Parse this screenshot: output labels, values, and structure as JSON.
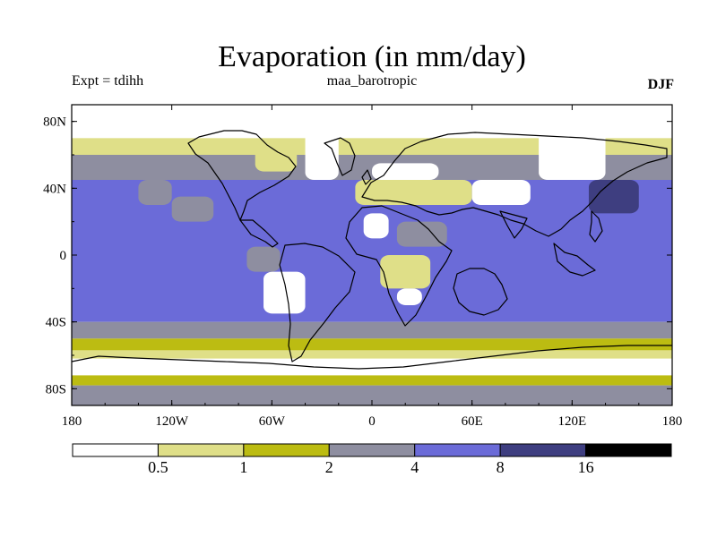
{
  "header": {
    "title": "Evaporation (in mm/day)",
    "experiment": "Expt = tdihh",
    "run_name": "maa_barotropic",
    "season": "DJF"
  },
  "colors": {
    "lt_0_5": "#ffffff",
    "0_5_to_1": "#dfdf88",
    "1_to_2": "#bcbc12",
    "2_to_4": "#8e8ea0",
    "4_to_8": "#6b6bd8",
    "8_to_16": "#3e3e80",
    "gt_16": "#000000",
    "coastline": "#000000"
  },
  "chart_data": {
    "type": "heatmap",
    "title": "Evaporation (in mm/day)",
    "x_axis": {
      "range": [
        -180,
        180
      ],
      "ticks": [
        -180,
        -120,
        -60,
        0,
        60,
        120,
        180
      ],
      "tick_labels": [
        "180",
        "120W",
        "60W",
        "0",
        "60E",
        "120E",
        "180"
      ]
    },
    "y_axis": {
      "range": [
        -90,
        90
      ],
      "ticks": [
        80,
        40,
        0,
        -40,
        -80
      ],
      "tick_labels": [
        "80N",
        "40N",
        "0",
        "40S",
        "80S"
      ]
    },
    "colorbar": {
      "levels": [
        0.5,
        1,
        2,
        4,
        8,
        16
      ],
      "level_labels": [
        "0.5",
        "1",
        "2",
        "4",
        "8",
        "16"
      ],
      "n_bins": 7
    },
    "zonal_bands": [
      {
        "lat": [
          70,
          90
        ],
        "bin": 0
      },
      {
        "lat": [
          60,
          70
        ],
        "bin": 1
      },
      {
        "lat": [
          45,
          60
        ],
        "bin": 3
      },
      {
        "lat": [
          -40,
          45
        ],
        "bin": 4
      },
      {
        "lat": [
          -50,
          -40
        ],
        "bin": 3
      },
      {
        "lat": [
          -57,
          -50
        ],
        "bin": 2
      },
      {
        "lat": [
          -62,
          -57
        ],
        "bin": 1
      },
      {
        "lat": [
          -72,
          -62
        ],
        "bin": 0
      },
      {
        "lat": [
          -78,
          -72
        ],
        "bin": 2
      },
      {
        "lat": [
          -90,
          -78
        ],
        "bin": 3
      }
    ],
    "regions": [
      {
        "name": "",
        "lon": [
          -40,
          -20
        ],
        "lat": [
          45,
          90
        ],
        "bin": 0
      },
      {
        "name": "",
        "lon": [
          -70,
          -45
        ],
        "lat": [
          50,
          65
        ],
        "bin": 1
      },
      {
        "name": "",
        "lon": [
          -10,
          60
        ],
        "lat": [
          30,
          45
        ],
        "bin": 1
      },
      {
        "name": "",
        "lon": [
          0,
          40
        ],
        "lat": [
          45,
          55
        ],
        "bin": 0
      },
      {
        "name": "",
        "lon": [
          -5,
          10
        ],
        "lat": [
          10,
          25
        ],
        "bin": 0
      },
      {
        "name": "",
        "lon": [
          15,
          45
        ],
        "lat": [
          5,
          20
        ],
        "bin": 3
      },
      {
        "name": "",
        "lon": [
          5,
          35
        ],
        "lat": [
          -20,
          0
        ],
        "bin": 1
      },
      {
        "name": "",
        "lon": [
          15,
          30
        ],
        "lat": [
          -30,
          -20
        ],
        "bin": 0
      },
      {
        "name": "",
        "lon": [
          -65,
          -40
        ],
        "lat": [
          -35,
          -10
        ],
        "bin": 0
      },
      {
        "name": "",
        "lon": [
          -75,
          -55
        ],
        "lat": [
          -10,
          5
        ],
        "bin": 3
      },
      {
        "name": "",
        "lon": [
          60,
          95
        ],
        "lat": [
          30,
          45
        ],
        "bin": 0
      },
      {
        "name": "",
        "lon": [
          100,
          140
        ],
        "lat": [
          45,
          75
        ],
        "bin": 0
      },
      {
        "name": "",
        "lon": [
          130,
          160
        ],
        "lat": [
          25,
          45
        ],
        "bin": 5
      },
      {
        "name": "",
        "lon": [
          -120,
          -95
        ],
        "lat": [
          20,
          35
        ],
        "bin": 3
      },
      {
        "name": "",
        "lon": [
          -140,
          -120
        ],
        "lat": [
          30,
          45
        ],
        "bin": 3
      }
    ]
  }
}
